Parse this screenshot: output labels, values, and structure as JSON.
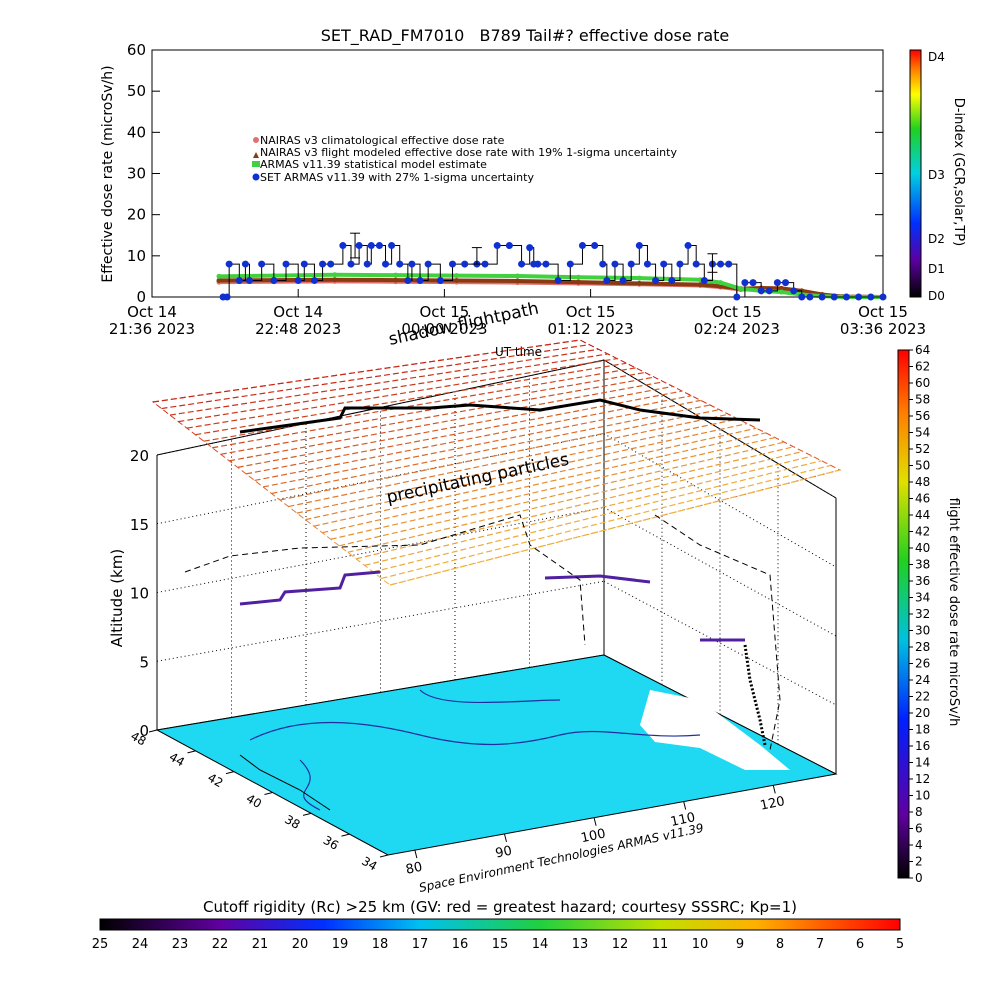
{
  "chart_data": [
    {
      "type": "line",
      "title": "SET_RAD_FM7010   B789 Tail#? effective dose rate",
      "ylabel": "Effective dose rate (microSv/h)",
      "xlabel": "UT time",
      "ylim": [
        0,
        60
      ],
      "yticks": [
        "0",
        "10",
        "20",
        "30",
        "40",
        "50",
        "60"
      ],
      "xticks": [
        {
          "t": 0,
          "line1": "Oct 14",
          "line2": "21:36 2023"
        },
        {
          "t": 72,
          "line1": "Oct 14",
          "line2": "22:48 2023"
        },
        {
          "t": 144,
          "line1": "Oct 15",
          "line2": "00:00 2023"
        },
        {
          "t": 216,
          "line1": "Oct 15",
          "line2": "01:12 2023"
        },
        {
          "t": 288,
          "line1": "Oct 15",
          "line2": "02:24 2023"
        },
        {
          "t": 360,
          "line1": "Oct 15",
          "line2": "03:36 2023"
        }
      ],
      "legend": [
        "NAIRAS v3 climatological effective dose rate",
        "NAIRAS v3 flight modeled effective dose rate with 19% 1-sigma uncertainty",
        "ARMAS v11.39 statistical model estimate",
        "SET ARMAS v11.39 with 27% 1-sigma uncertainty"
      ],
      "series": [
        {
          "name": "SET ARMAS v11.39 with 27% 1-sigma uncertainty",
          "color": "#1030d0",
          "x": [
            35,
            37,
            38,
            43,
            46,
            48,
            54,
            60,
            66,
            72,
            75,
            80,
            84,
            88,
            94,
            98,
            102,
            106,
            108,
            112,
            115,
            118,
            122,
            126,
            128,
            132,
            136,
            142,
            148,
            154,
            160,
            164,
            170,
            176,
            182,
            186,
            188,
            190,
            194,
            200,
            206,
            212,
            218,
            222,
            224,
            228,
            232,
            236,
            240,
            244,
            248,
            252,
            256,
            260,
            264,
            268,
            272,
            276,
            280,
            284,
            288,
            292,
            296,
            300,
            304,
            308,
            312,
            316,
            320,
            324,
            330,
            336,
            342,
            348,
            354,
            360
          ],
          "y": [
            0,
            0,
            8,
            4,
            8,
            4,
            8,
            4,
            8,
            4,
            8,
            4,
            8,
            8,
            12.5,
            8,
            12.5,
            8,
            12.5,
            12.5,
            8,
            12.5,
            8,
            4,
            8,
            4,
            8,
            4,
            8,
            8,
            8,
            8,
            12.5,
            12.5,
            8,
            12,
            8,
            8,
            8,
            4,
            8,
            12.5,
            12.5,
            8,
            4,
            8,
            4,
            8,
            12.5,
            8,
            4,
            8,
            4,
            8,
            12.5,
            8,
            4,
            8,
            8,
            8,
            0,
            3.5,
            3.5,
            1.5,
            1.5,
            3.5,
            3.5,
            1.5,
            0,
            0,
            0,
            0,
            0,
            0,
            0,
            0
          ]
        },
        {
          "name": "ARMAS v11.39 statistical model estimate",
          "color": "#40d040",
          "x": [
            33,
            60,
            90,
            120,
            150,
            180,
            210,
            240,
            270,
            280,
            290,
            300,
            310,
            320,
            330,
            340,
            360
          ],
          "y": [
            5,
            5.2,
            5.4,
            5.3,
            5.2,
            5.1,
            4.8,
            4.6,
            4.2,
            3.5,
            2,
            1.5,
            1.2,
            0.6,
            0.2,
            0,
            0
          ]
        },
        {
          "name": "NAIRAS v3 flight modeled effective dose rate with 19% 1-sigma uncertainty",
          "color": "#8a3a10",
          "x": [
            33,
            60,
            90,
            120,
            150,
            180,
            210,
            240,
            270,
            280,
            290,
            300,
            310,
            320,
            330,
            340,
            360
          ],
          "y": [
            4,
            4.1,
            4.2,
            4.1,
            4,
            3.9,
            3.6,
            3.3,
            3,
            2.6,
            2,
            2.2,
            2.1,
            1.5,
            0.6,
            0.1,
            0
          ]
        },
        {
          "name": "NAIRAS v3 climatological effective dose rate",
          "color": "#e07070",
          "x": [
            33,
            60,
            90,
            120,
            150,
            180,
            210,
            240,
            270,
            280,
            290,
            300,
            310,
            320,
            330,
            340,
            360
          ],
          "y": [
            3.6,
            3.7,
            3.8,
            3.7,
            3.6,
            3.5,
            3.3,
            3.1,
            2.8,
            2.4,
            1.8,
            2,
            1.9,
            1.3,
            0.5,
            0.1,
            0
          ]
        }
      ],
      "error_bars": [
        {
          "x": 100,
          "y": 12.5,
          "lo": 9.5,
          "hi": 15.5
        },
        {
          "x": 160,
          "y": 10,
          "lo": 8,
          "hi": 12
        },
        {
          "x": 276,
          "y": 8,
          "lo": 6,
          "hi": 10.5
        }
      ]
    },
    {
      "type": "colorbar",
      "ylabel": "D-index (GCR,solar,TP)",
      "ticks": [
        "D0",
        "D1",
        "D2",
        "D3",
        "D4"
      ]
    },
    {
      "type": "3d-flightpath",
      "annotations": [
        "shadow flightpath",
        "precipitating particles"
      ],
      "zlabel": "Altitude (km)",
      "zticks": [
        "0",
        "5",
        "10",
        "15",
        "20"
      ],
      "lat_ticks": [
        "48",
        "44",
        "42",
        "40",
        "38",
        "36",
        "34"
      ],
      "lon_ticks": [
        "80",
        "90",
        "100",
        "110",
        "120"
      ],
      "footer": "Space Environment Technologies ARMAS v11.39",
      "flight_altitude_km": 10,
      "particle_plane_altitude_km": 20
    },
    {
      "type": "colorbar",
      "ylabel": "flight effective dose rate microSv/h",
      "ticks": [
        "0",
        "2",
        "4",
        "6",
        "8",
        "10",
        "12",
        "14",
        "16",
        "18",
        "20",
        "22",
        "24",
        "26",
        "28",
        "30",
        "32",
        "34",
        "36",
        "38",
        "40",
        "42",
        "44",
        "46",
        "48",
        "50",
        "52",
        "54",
        "56",
        "58",
        "60",
        "62",
        "64"
      ]
    },
    {
      "type": "colorbar",
      "title": "Cutoff rigidity (Rc) >25 km (GV: red = greatest hazard; courtesy SSSRC; Kp=1)",
      "ticks": [
        "25",
        "24",
        "23",
        "22",
        "21",
        "20",
        "19",
        "18",
        "17",
        "16",
        "15",
        "14",
        "13",
        "12",
        "11",
        "10",
        "9",
        "8",
        "7",
        "6",
        "5"
      ]
    }
  ]
}
